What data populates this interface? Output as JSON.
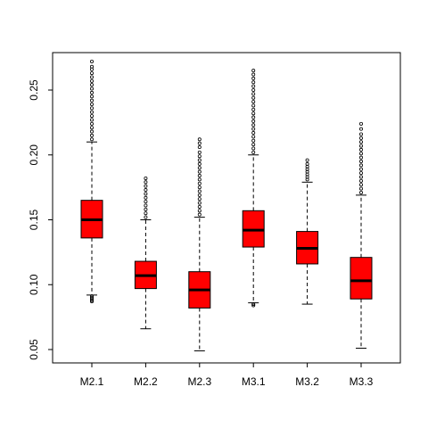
{
  "chart_data": {
    "type": "boxplot",
    "title": "",
    "xlabel": "",
    "ylabel": "",
    "ylim": [
      0.04,
      0.28
    ],
    "yticks": [
      0.05,
      0.1,
      0.15,
      0.2,
      0.25
    ],
    "ytick_labels": [
      "0.05",
      "0.10",
      "0.15",
      "0.20",
      "0.25"
    ],
    "categories": [
      "M2.1",
      "M2.2",
      "M2.3",
      "M3.1",
      "M3.2",
      "M3.3"
    ],
    "box_color": "#ff0000",
    "median_color": "#000000",
    "boxes": [
      {
        "label": "M2.1",
        "whisker_low": 0.092,
        "q1": 0.136,
        "median": 0.15,
        "q3": 0.165,
        "whisker_high": 0.21,
        "outliers_low": [
          0.087,
          0.088,
          0.089,
          0.09,
          0.091
        ],
        "outliers_high": [
          0.212,
          0.215,
          0.218,
          0.221,
          0.224,
          0.227,
          0.23,
          0.233,
          0.236,
          0.239,
          0.242,
          0.245,
          0.248,
          0.251,
          0.254,
          0.257,
          0.26,
          0.263,
          0.266,
          0.268,
          0.272
        ]
      },
      {
        "label": "M2.2",
        "whisker_low": 0.066,
        "q1": 0.097,
        "median": 0.107,
        "q3": 0.118,
        "whisker_high": 0.15,
        "outliers_low": [],
        "outliers_high": [
          0.152,
          0.155,
          0.158,
          0.161,
          0.164,
          0.167,
          0.17,
          0.173,
          0.176,
          0.179,
          0.182
        ]
      },
      {
        "label": "M2.3",
        "whisker_low": 0.049,
        "q1": 0.082,
        "median": 0.096,
        "q3": 0.11,
        "whisker_high": 0.152,
        "outliers_low": [],
        "outliers_high": [
          0.154,
          0.157,
          0.16,
          0.163,
          0.166,
          0.169,
          0.172,
          0.175,
          0.178,
          0.181,
          0.184,
          0.187,
          0.19,
          0.193,
          0.196,
          0.199,
          0.202,
          0.206,
          0.209,
          0.212
        ]
      },
      {
        "label": "M3.1",
        "whisker_low": 0.086,
        "q1": 0.129,
        "median": 0.142,
        "q3": 0.157,
        "whisker_high": 0.2,
        "outliers_low": [
          0.084,
          0.085
        ],
        "outliers_high": [
          0.202,
          0.205,
          0.208,
          0.211,
          0.214,
          0.217,
          0.22,
          0.223,
          0.226,
          0.229,
          0.232,
          0.235,
          0.238,
          0.241,
          0.244,
          0.247,
          0.25,
          0.253,
          0.256,
          0.259,
          0.262,
          0.265
        ]
      },
      {
        "label": "M3.2",
        "whisker_low": 0.085,
        "q1": 0.116,
        "median": 0.128,
        "q3": 0.141,
        "whisker_high": 0.179,
        "outliers_low": [],
        "outliers_high": [
          0.181,
          0.183,
          0.185,
          0.187,
          0.189,
          0.191,
          0.193,
          0.196
        ]
      },
      {
        "label": "M3.3",
        "whisker_low": 0.051,
        "q1": 0.089,
        "median": 0.103,
        "q3": 0.121,
        "whisker_high": 0.169,
        "outliers_low": [],
        "outliers_high": [
          0.171,
          0.174,
          0.177,
          0.18,
          0.183,
          0.186,
          0.189,
          0.192,
          0.195,
          0.198,
          0.201,
          0.204,
          0.207,
          0.21,
          0.213,
          0.216,
          0.22,
          0.224
        ]
      }
    ]
  }
}
